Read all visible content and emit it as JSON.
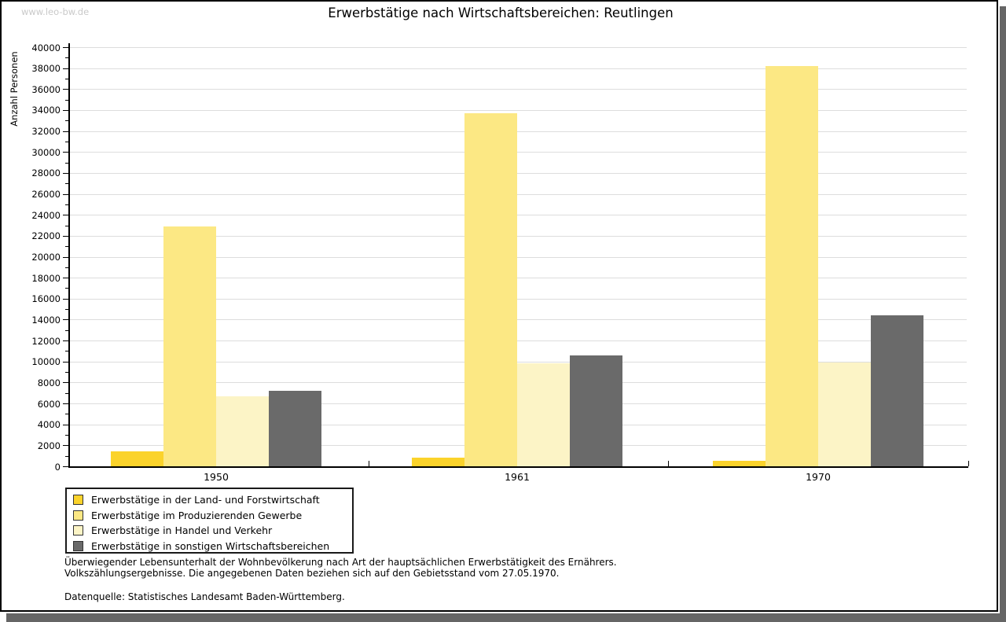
{
  "watermark": "www.leo-bw.de",
  "title": "Erwerbstätige nach Wirtschaftsbereichen: Reutlingen",
  "chart_data": {
    "type": "bar",
    "title": "Erwerbstätige nach Wirtschaftsbereichen: Reutlingen",
    "xlabel": "",
    "ylabel": "Anzahl Personen",
    "categories": [
      "1950",
      "1961",
      "1970"
    ],
    "series": [
      {
        "name": "Erwerbstätige in der Land- und Forstwirtschaft",
        "color": "#FBD32B",
        "values": [
          1450,
          850,
          500
        ]
      },
      {
        "name": "Erwerbstätige im Produzierenden Gewerbe",
        "color": "#FCE884",
        "values": [
          22900,
          33700,
          38200
        ]
      },
      {
        "name": "Erwerbstätige in Handel und Verkehr",
        "color": "#FCF4C6",
        "values": [
          6700,
          9800,
          9900
        ]
      },
      {
        "name": "Erwerbstätige in sonstigen Wirtschaftsbereichen",
        "color": "#6A6A6A",
        "values": [
          7200,
          10600,
          14400
        ]
      }
    ],
    "ylim": [
      0,
      40000
    ],
    "ytick_step": 2000,
    "yminor_step": 1000,
    "grid": true,
    "gridline_color": "#dddddd",
    "legend_position": "bottom-left"
  },
  "footnotes": [
    "Überwiegender Lebensunterhalt der Wohnbevölkerung nach Art der hauptsächlichen Erwerbstätigkeit des Ernährers.",
    "Volkszählungsergebnisse. Die angegebenen Daten beziehen sich auf den Gebietsstand vom 27.05.1970."
  ],
  "source": "Datenquelle: Statistisches Landesamt Baden-Württemberg."
}
